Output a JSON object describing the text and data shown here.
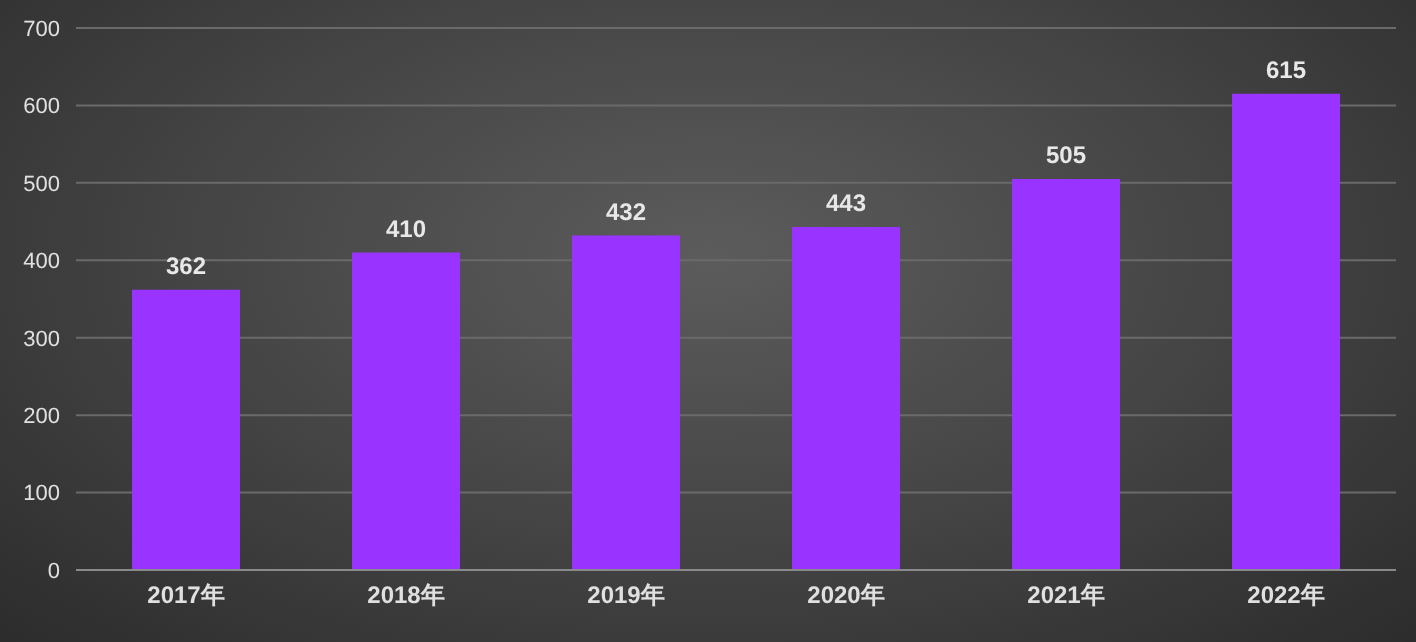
{
  "chart_data": {
    "type": "bar",
    "categories": [
      "2017年",
      "2018年",
      "2019年",
      "2020年",
      "2021年",
      "2022年"
    ],
    "values": [
      362,
      410,
      432,
      443,
      505,
      615
    ],
    "color": "#9933ff",
    "ylim": [
      0,
      700
    ],
    "yticks": [
      0,
      100,
      200,
      300,
      400,
      500,
      600,
      700
    ],
    "grid": "y",
    "data_labels": true,
    "legend": false
  }
}
